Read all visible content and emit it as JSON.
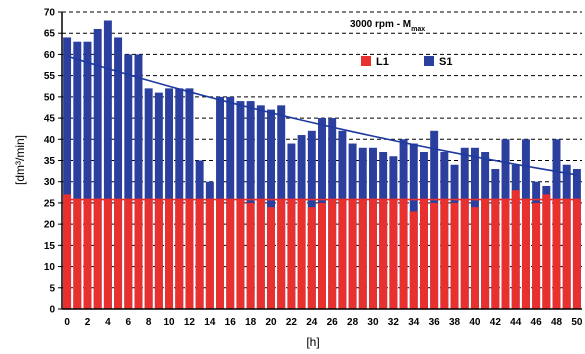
{
  "chart_data": {
    "type": "bar",
    "annotation": "3000 rpm - M",
    "annotation_sub": "max",
    "xlabel": "[h]",
    "ylabel": "[dm³/min]",
    "ylim": [
      0,
      70
    ],
    "yticks": [
      0,
      5,
      10,
      15,
      20,
      25,
      30,
      35,
      40,
      45,
      50,
      55,
      60,
      65,
      70
    ],
    "ytick_labels": [
      "0",
      "5",
      "10",
      "15",
      "20",
      "25",
      "30",
      "35",
      "40",
      "45",
      "50",
      "55",
      "60",
      "65",
      "70"
    ],
    "x": [
      0,
      1,
      2,
      3,
      4,
      5,
      6,
      7,
      8,
      9,
      10,
      11,
      12,
      13,
      14,
      15,
      16,
      17,
      18,
      19,
      20,
      21,
      22,
      23,
      24,
      25,
      26,
      27,
      28,
      29,
      30,
      31,
      32,
      33,
      34,
      35,
      36,
      37,
      38,
      39,
      40,
      41,
      42,
      43,
      44,
      45,
      46,
      47,
      48,
      49,
      50
    ],
    "xtick_labels": [
      "0",
      "2",
      "4",
      "6",
      "8",
      "10",
      "12",
      "14",
      "16",
      "18",
      "20",
      "22",
      "24",
      "26",
      "28",
      "30",
      "32",
      "34",
      "36",
      "38",
      "40",
      "42",
      "44",
      "46",
      "48",
      "50"
    ],
    "grid": "horizontal dashed",
    "legend_position": "top-right",
    "series": [
      {
        "name": "L1",
        "color": "#e8312f",
        "values": [
          27,
          26,
          26,
          26,
          26,
          26,
          26,
          26,
          26,
          26,
          26,
          26,
          26,
          26,
          26,
          26,
          26,
          26,
          25,
          26,
          24,
          26,
          26,
          26,
          24,
          25,
          26,
          26,
          26,
          26,
          26,
          26,
          26,
          26,
          23,
          26,
          25,
          26,
          25,
          26,
          24,
          26,
          26,
          26,
          28,
          26,
          25,
          27,
          26,
          26,
          26
        ]
      },
      {
        "name": "S1",
        "color": "#2b3f9e",
        "values": [
          64,
          63,
          63,
          66,
          68,
          64,
          60,
          60,
          52,
          51,
          52,
          52,
          52,
          35,
          30,
          50,
          50,
          49,
          49,
          48,
          47,
          48,
          39,
          41,
          42,
          45,
          45,
          42,
          39,
          38,
          38,
          37,
          36,
          40,
          39,
          37,
          42,
          37,
          34,
          38,
          38,
          37,
          33,
          40,
          34,
          40,
          30,
          29,
          40,
          34,
          33
        ]
      }
    ],
    "trendlines": [
      {
        "series": "S1",
        "color": "#1e3a9e"
      },
      {
        "series": "L1",
        "color": "#e8312f"
      }
    ]
  }
}
